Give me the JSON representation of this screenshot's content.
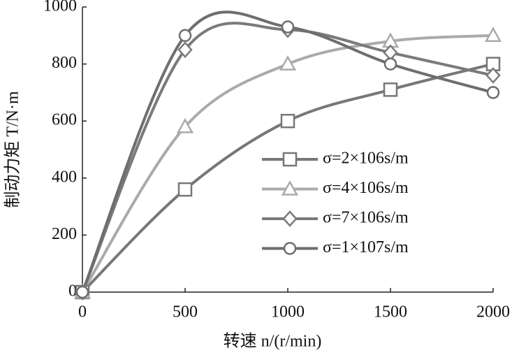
{
  "chart_data": {
    "type": "line",
    "xlabel": "转速 n/(r/min)",
    "ylabel": "制动力矩 T/N·m",
    "x": [
      0,
      500,
      1000,
      1500,
      2000
    ],
    "xlim": [
      0,
      2000
    ],
    "xticks": [
      0,
      500,
      1000,
      1500,
      2000
    ],
    "ylim": [
      0,
      1000
    ],
    "yticks": [
      0,
      200,
      400,
      600,
      800,
      1000
    ],
    "smooth": true,
    "series": [
      {
        "name": "σ=2×106s/m",
        "color": "#777777",
        "marker": "square",
        "values": [
          0,
          360,
          600,
          710,
          800
        ]
      },
      {
        "name": "σ=4×106s/m",
        "color": "#aaaaaa",
        "marker": "triangle",
        "values": [
          0,
          580,
          800,
          880,
          900
        ]
      },
      {
        "name": "σ=7×106s/m",
        "color": "#7a7a7a",
        "marker": "diamond",
        "values": [
          0,
          850,
          920,
          840,
          760
        ]
      },
      {
        "name": "σ=1×107s/m",
        "color": "#6e6e6e",
        "marker": "circle",
        "values": [
          0,
          900,
          930,
          800,
          700
        ]
      }
    ]
  }
}
